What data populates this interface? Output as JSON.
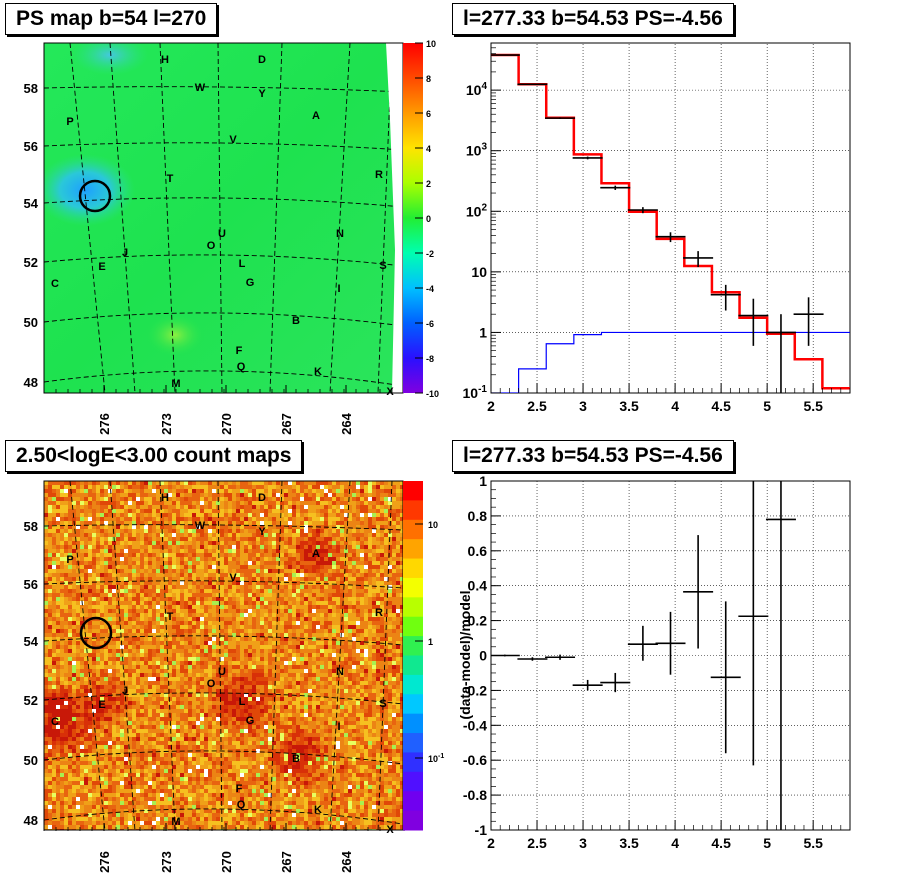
{
  "panels": {
    "ps_map_title": "PS map b=54 l=270",
    "spectrum_title": "l=277.33 b=54.53 PS=-4.56",
    "count_map_title": "2.50<logE<3.00 count maps",
    "residual_title": "l=277.33 b=54.53 PS=-4.56"
  },
  "maps": {
    "b_ticks": [
      "58",
      "56",
      "54",
      "52",
      "50",
      "48"
    ],
    "l_ticks": [
      "276",
      "273",
      "270",
      "267",
      "264"
    ],
    "source_labels": [
      "H",
      "D",
      "W",
      "Y",
      "A",
      "P",
      "V",
      "T",
      "R",
      "N",
      "U",
      "O",
      "J",
      "E",
      "L",
      "S",
      "C",
      "G",
      "I",
      "B",
      "F",
      "Q",
      "K",
      "M",
      "X"
    ],
    "ps_colorbar": {
      "range": [
        -10,
        10
      ],
      "ticks": [
        "10",
        "8",
        "6",
        "4",
        "2",
        "0",
        "-2",
        "-4",
        "-6",
        "-8",
        "-10"
      ]
    },
    "count_colorbar": {
      "scale": "log",
      "ticks": [
        "10",
        "1",
        "10^-1"
      ]
    }
  },
  "chart_data": [
    {
      "type": "line",
      "panel": "spectrum",
      "title": "l=277.33 b=54.53 PS=-4.56",
      "xlabel": "",
      "ylabel": "",
      "xlim": [
        2,
        5.9
      ],
      "ylim": [
        0.1,
        60000
      ],
      "yscale": "log",
      "x_ticks": [
        "2",
        "2.5",
        "3",
        "3.5",
        "4",
        "4.5",
        "5",
        "5.5"
      ],
      "y_ticks": [
        "10^-1",
        "1",
        "10",
        "10^2",
        "10^3",
        "10^4"
      ],
      "bin_edges": [
        2,
        2.3,
        2.6,
        2.9,
        3.2,
        3.5,
        3.8,
        4.1,
        4.4,
        4.7,
        5.0,
        5.3,
        5.6,
        5.9
      ],
      "series": [
        {
          "color": "#ff0000",
          "values": [
            38000,
            12500,
            3500,
            870,
            290,
            98,
            35,
            12.5,
            4.6,
            1.75,
            0.95,
            0.36,
            0.12
          ]
        },
        {
          "color": "#0000ff",
          "values": [
            0.1,
            0.25,
            0.65,
            0.92,
            1.0,
            1.0,
            1.0,
            1.0,
            1.0,
            1.0,
            1.0,
            1.0,
            1.0
          ]
        },
        {
          "color": "#000000",
          "style": "errorbar",
          "points": [
            {
              "x": 2.15,
              "y": 38000,
              "lo": 37500,
              "hi": 38500
            },
            {
              "x": 2.45,
              "y": 12500,
              "lo": 12200,
              "hi": 12800
            },
            {
              "x": 2.75,
              "y": 3450,
              "lo": 3350,
              "hi": 3550
            },
            {
              "x": 3.05,
              "y": 760,
              "lo": 720,
              "hi": 800
            },
            {
              "x": 3.35,
              "y": 245,
              "lo": 225,
              "hi": 265
            },
            {
              "x": 3.65,
              "y": 105,
              "lo": 93,
              "hi": 117
            },
            {
              "x": 3.95,
              "y": 38,
              "lo": 31,
              "hi": 45
            },
            {
              "x": 4.25,
              "y": 17,
              "lo": 12,
              "hi": 22
            },
            {
              "x": 4.55,
              "y": 4.2,
              "lo": 2.3,
              "hi": 6.1
            },
            {
              "x": 4.85,
              "y": 1.9,
              "lo": 0.6,
              "hi": 3.6
            },
            {
              "x": 5.15,
              "y": 1.0,
              "lo": 0.1,
              "hi": 2.0
            },
            {
              "x": 5.45,
              "y": 2.0,
              "lo": 0.6,
              "hi": 3.8
            }
          ]
        }
      ]
    },
    {
      "type": "scatter",
      "panel": "residual",
      "title": "l=277.33 b=54.53 PS=-4.56",
      "xlabel": "",
      "ylabel": "(data-model)/model",
      "xlim": [
        2,
        5.9
      ],
      "ylim": [
        -1,
        1
      ],
      "x_ticks": [
        "2",
        "2.5",
        "3",
        "3.5",
        "4",
        "4.5",
        "5",
        "5.5"
      ],
      "y_ticks": [
        "1",
        "0.8",
        "0.6",
        "0.4",
        "0.2",
        "0",
        "-0.2",
        "-0.4",
        "-0.6",
        "-0.8",
        "-1"
      ],
      "series": [
        {
          "color": "#000000",
          "style": "errorbar",
          "points": [
            {
              "x": 2.15,
              "y": 0.0,
              "lo": -0.005,
              "hi": 0.005
            },
            {
              "x": 2.45,
              "y": -0.02,
              "lo": -0.03,
              "hi": -0.01
            },
            {
              "x": 2.75,
              "y": -0.01,
              "lo": -0.025,
              "hi": 0.005
            },
            {
              "x": 3.05,
              "y": -0.17,
              "lo": -0.2,
              "hi": -0.14
            },
            {
              "x": 3.35,
              "y": -0.155,
              "lo": -0.21,
              "hi": -0.1
            },
            {
              "x": 3.65,
              "y": 0.065,
              "lo": -0.03,
              "hi": 0.17
            },
            {
              "x": 3.95,
              "y": 0.07,
              "lo": -0.11,
              "hi": 0.25
            },
            {
              "x": 4.25,
              "y": 0.365,
              "lo": 0.04,
              "hi": 0.69
            },
            {
              "x": 4.55,
              "y": -0.125,
              "lo": -0.56,
              "hi": 0.31
            },
            {
              "x": 4.85,
              "y": 0.225,
              "lo": -0.63,
              "hi": 1.0
            },
            {
              "x": 5.15,
              "y": 0.78,
              "lo": -1.0,
              "hi": 1.0
            }
          ]
        }
      ]
    }
  ]
}
